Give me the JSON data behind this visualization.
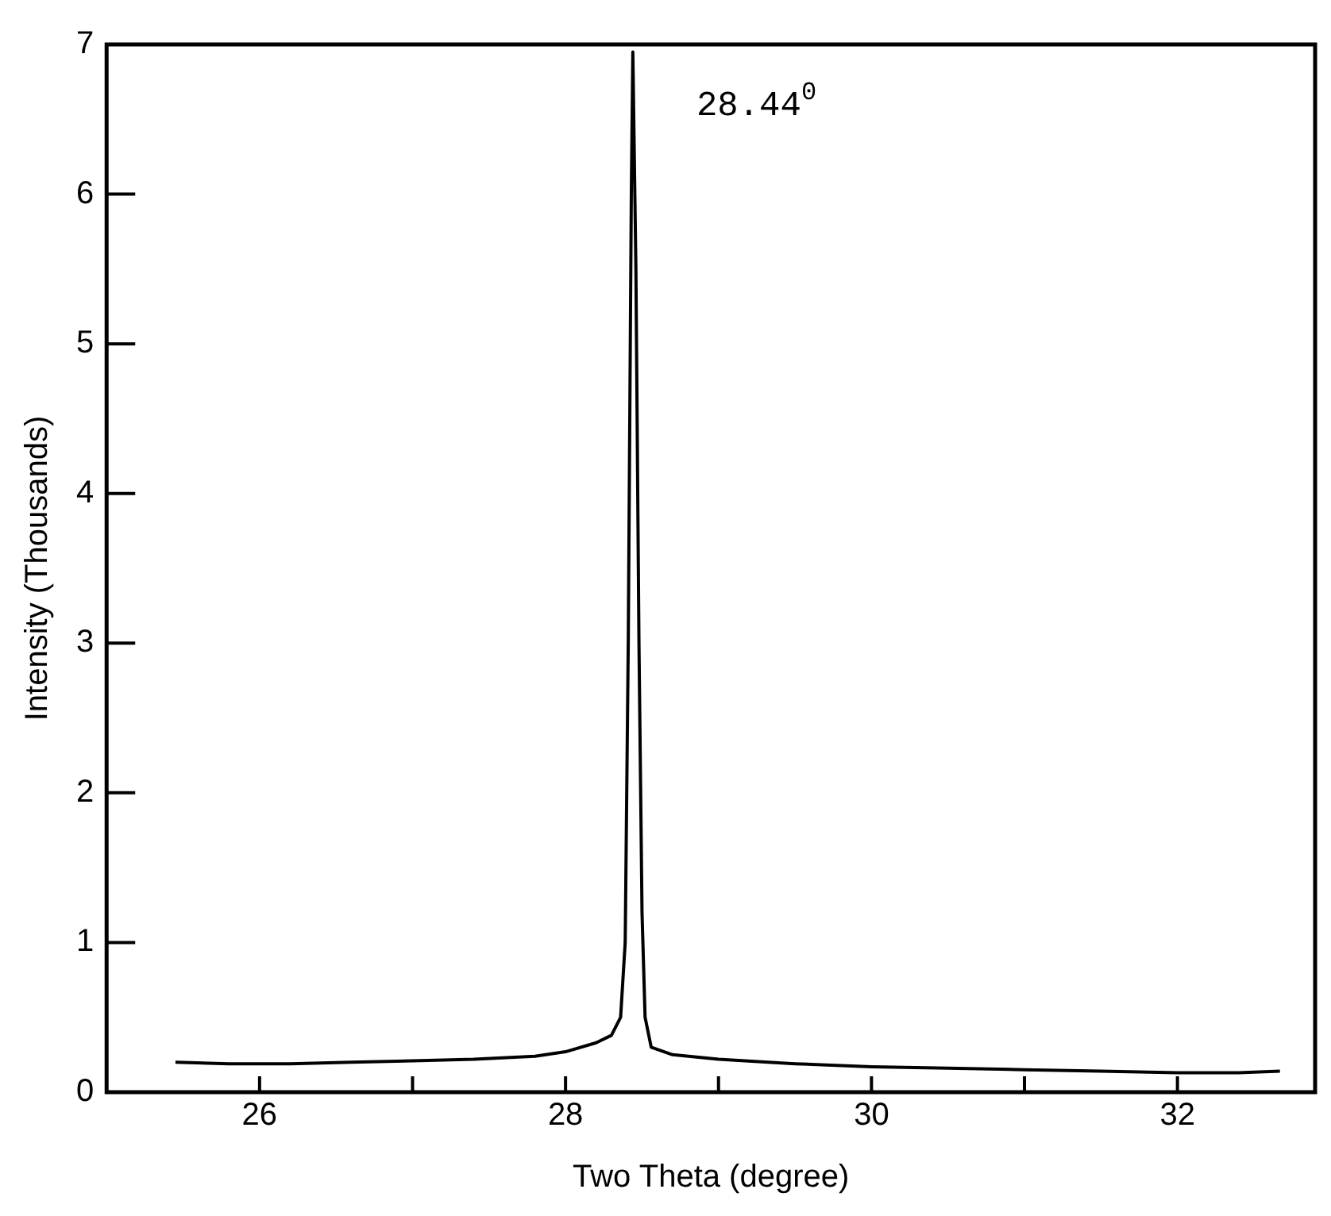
{
  "chart_data": {
    "type": "line",
    "xlabel": "Two Theta (degree)",
    "ylabel": "Intensity (Thousands)",
    "annotations": [
      {
        "text": "28.44$^{0}$",
        "x": 28.44,
        "y": 6.95
      }
    ],
    "series": [
      {
        "color": "#000000",
        "x": [
          25.45,
          25.8,
          26.2,
          26.6,
          27,
          27.4,
          27.8,
          28.0,
          28.2,
          28.3,
          28.36,
          28.39,
          28.41,
          28.43,
          28.44,
          28.46,
          28.48,
          28.5,
          28.52,
          28.56,
          28.7,
          29,
          29.5,
          30,
          30.5,
          31,
          31.5,
          32,
          32.4,
          32.67
        ],
        "values": [
          0.2,
          0.19,
          0.19,
          0.2,
          0.21,
          0.22,
          0.24,
          0.27,
          0.33,
          0.38,
          0.5,
          1.0,
          3.0,
          6.0,
          6.95,
          5.5,
          3.0,
          1.2,
          0.5,
          0.3,
          0.25,
          0.22,
          0.19,
          0.17,
          0.16,
          0.15,
          0.14,
          0.13,
          0.13,
          0.14
        ]
      }
    ],
    "xlim": [
      25,
      32.9
    ],
    "xticks": [
      26,
      {
        "value": 27,
        "label": null
      },
      28,
      {
        "value": 29,
        "label": null
      },
      30,
      {
        "value": 31,
        "label": null
      },
      32
    ],
    "ylim": [
      0,
      7
    ],
    "yticks": [
      0,
      1,
      2,
      3,
      4,
      5,
      6,
      7
    ],
    "grid": false,
    "legend": false,
    "marker": "none",
    "line_style": "solid"
  }
}
